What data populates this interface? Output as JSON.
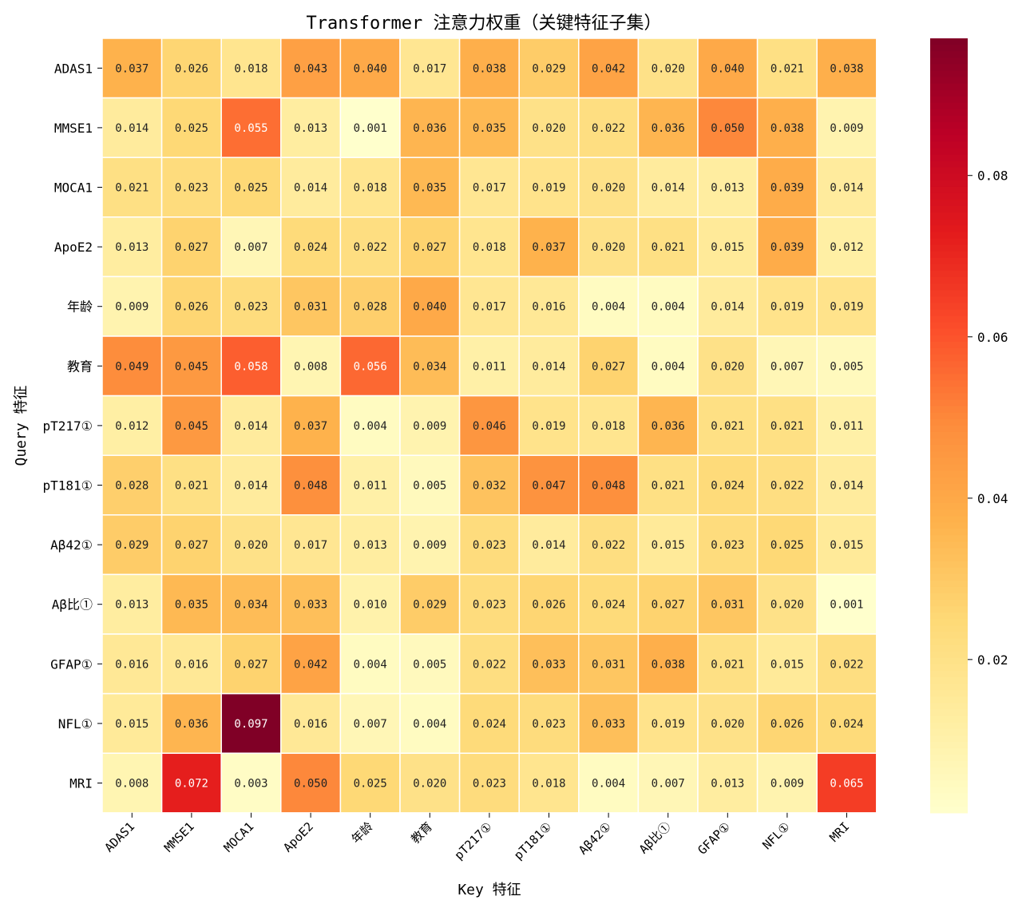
{
  "chart_data": {
    "type": "heatmap",
    "title": "Transformer 注意力权重（关键特征子集）",
    "xlabel": "Key 特征",
    "ylabel": "Query 特征",
    "x_categories": [
      "ADAS1",
      "MMSE1",
      "MOCA1",
      "ApoE2",
      "年龄",
      "教育",
      "pT217①",
      "pT181①",
      "Aβ42①",
      "Aβ比①",
      "GFAP①",
      "NFL①",
      "MRI"
    ],
    "y_categories": [
      "ADAS1",
      "MMSE1",
      "MOCA1",
      "ApoE2",
      "年龄",
      "教育",
      "pT217①",
      "pT181①",
      "Aβ42①",
      "Aβ比①",
      "GFAP①",
      "NFL①",
      "MRI"
    ],
    "values": [
      [
        0.037,
        0.026,
        0.018,
        0.043,
        0.04,
        0.017,
        0.038,
        0.029,
        0.042,
        0.02,
        0.04,
        0.021,
        0.038
      ],
      [
        0.014,
        0.025,
        0.055,
        0.013,
        0.001,
        0.036,
        0.035,
        0.02,
        0.022,
        0.036,
        0.05,
        0.038,
        0.009
      ],
      [
        0.021,
        0.023,
        0.025,
        0.014,
        0.018,
        0.035,
        0.017,
        0.019,
        0.02,
        0.014,
        0.013,
        0.039,
        0.014
      ],
      [
        0.013,
        0.027,
        0.007,
        0.024,
        0.022,
        0.027,
        0.018,
        0.037,
        0.02,
        0.021,
        0.015,
        0.039,
        0.012
      ],
      [
        0.009,
        0.026,
        0.023,
        0.031,
        0.028,
        0.04,
        0.017,
        0.016,
        0.004,
        0.004,
        0.014,
        0.019,
        0.019
      ],
      [
        0.049,
        0.045,
        0.058,
        0.008,
        0.056,
        0.034,
        0.011,
        0.014,
        0.027,
        0.004,
        0.02,
        0.007,
        0.005
      ],
      [
        0.012,
        0.045,
        0.014,
        0.037,
        0.004,
        0.009,
        0.046,
        0.019,
        0.018,
        0.036,
        0.021,
        0.021,
        0.011
      ],
      [
        0.028,
        0.021,
        0.014,
        0.048,
        0.011,
        0.005,
        0.032,
        0.047,
        0.048,
        0.021,
        0.024,
        0.022,
        0.014
      ],
      [
        0.029,
        0.027,
        0.02,
        0.017,
        0.013,
        0.009,
        0.023,
        0.014,
        0.022,
        0.015,
        0.023,
        0.025,
        0.015
      ],
      [
        0.013,
        0.035,
        0.034,
        0.033,
        0.01,
        0.029,
        0.023,
        0.026,
        0.024,
        0.027,
        0.031,
        0.02,
        0.001
      ],
      [
        0.016,
        0.016,
        0.027,
        0.042,
        0.004,
        0.005,
        0.022,
        0.033,
        0.031,
        0.038,
        0.021,
        0.015,
        0.022
      ],
      [
        0.015,
        0.036,
        0.097,
        0.016,
        0.007,
        0.004,
        0.024,
        0.023,
        0.033,
        0.019,
        0.02,
        0.026,
        0.024
      ],
      [
        0.008,
        0.072,
        0.003,
        0.05,
        0.025,
        0.02,
        0.023,
        0.018,
        0.004,
        0.007,
        0.013,
        0.009,
        0.065
      ]
    ],
    "value_format": "0.000",
    "colormap": "YlOrRd",
    "color_stops": [
      "#ffffcc",
      "#ffeda0",
      "#fed976",
      "#feb24c",
      "#fd8d3c",
      "#fc4e2a",
      "#e31a1c",
      "#bd0026",
      "#800026"
    ],
    "vmin": 0.001,
    "vmax": 0.097,
    "colorbar_ticks": [
      0.02,
      0.04,
      0.06,
      0.08
    ],
    "colorbar_tick_labels": [
      "0.02",
      "0.04",
      "0.06",
      "0.08"
    ],
    "cell_border_color": "#ffffff"
  }
}
